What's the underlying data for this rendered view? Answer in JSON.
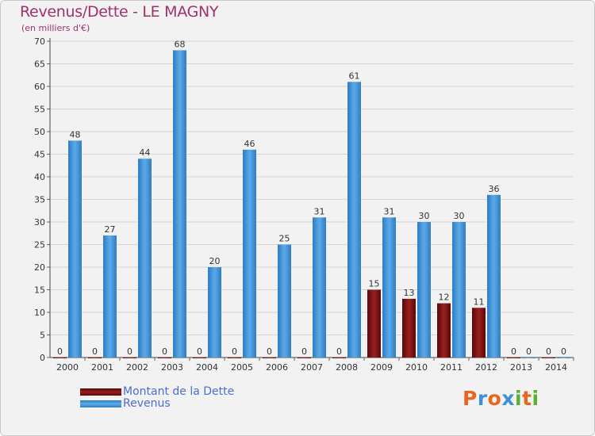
{
  "chart_data": {
    "type": "bar",
    "title": "Revenus/Dette - LE MAGNY",
    "subtitle": "(en milliers d'€)",
    "categories": [
      "2000",
      "2001",
      "2002",
      "2003",
      "2004",
      "2005",
      "2006",
      "2007",
      "2008",
      "2009",
      "2010",
      "2011",
      "2012",
      "2013",
      "2014"
    ],
    "series": [
      {
        "name": "Montant de la Dette",
        "color": "#7a1010",
        "values": [
          0,
          0,
          0,
          0,
          0,
          0,
          0,
          0,
          0,
          15,
          13,
          12,
          11,
          0,
          0
        ]
      },
      {
        "name": "Revenus",
        "color": "#3d8fd6",
        "values": [
          48,
          27,
          44,
          68,
          20,
          46,
          25,
          31,
          61,
          31,
          30,
          30,
          36,
          0,
          0
        ]
      }
    ],
    "ylim": [
      0,
      70
    ],
    "yticks": [
      0,
      5,
      10,
      15,
      20,
      25,
      30,
      35,
      40,
      45,
      50,
      55,
      60,
      65,
      70
    ],
    "grid": true,
    "legend": "bottom-left"
  },
  "logo": {
    "letters": [
      "P",
      "r",
      "o",
      "x",
      "i",
      "t",
      "i"
    ],
    "colors": [
      "#e8661e",
      "#3d8fd6",
      "#e8661e",
      "#3d8fd6",
      "#58b030",
      "#e8661e",
      "#58b030"
    ]
  }
}
